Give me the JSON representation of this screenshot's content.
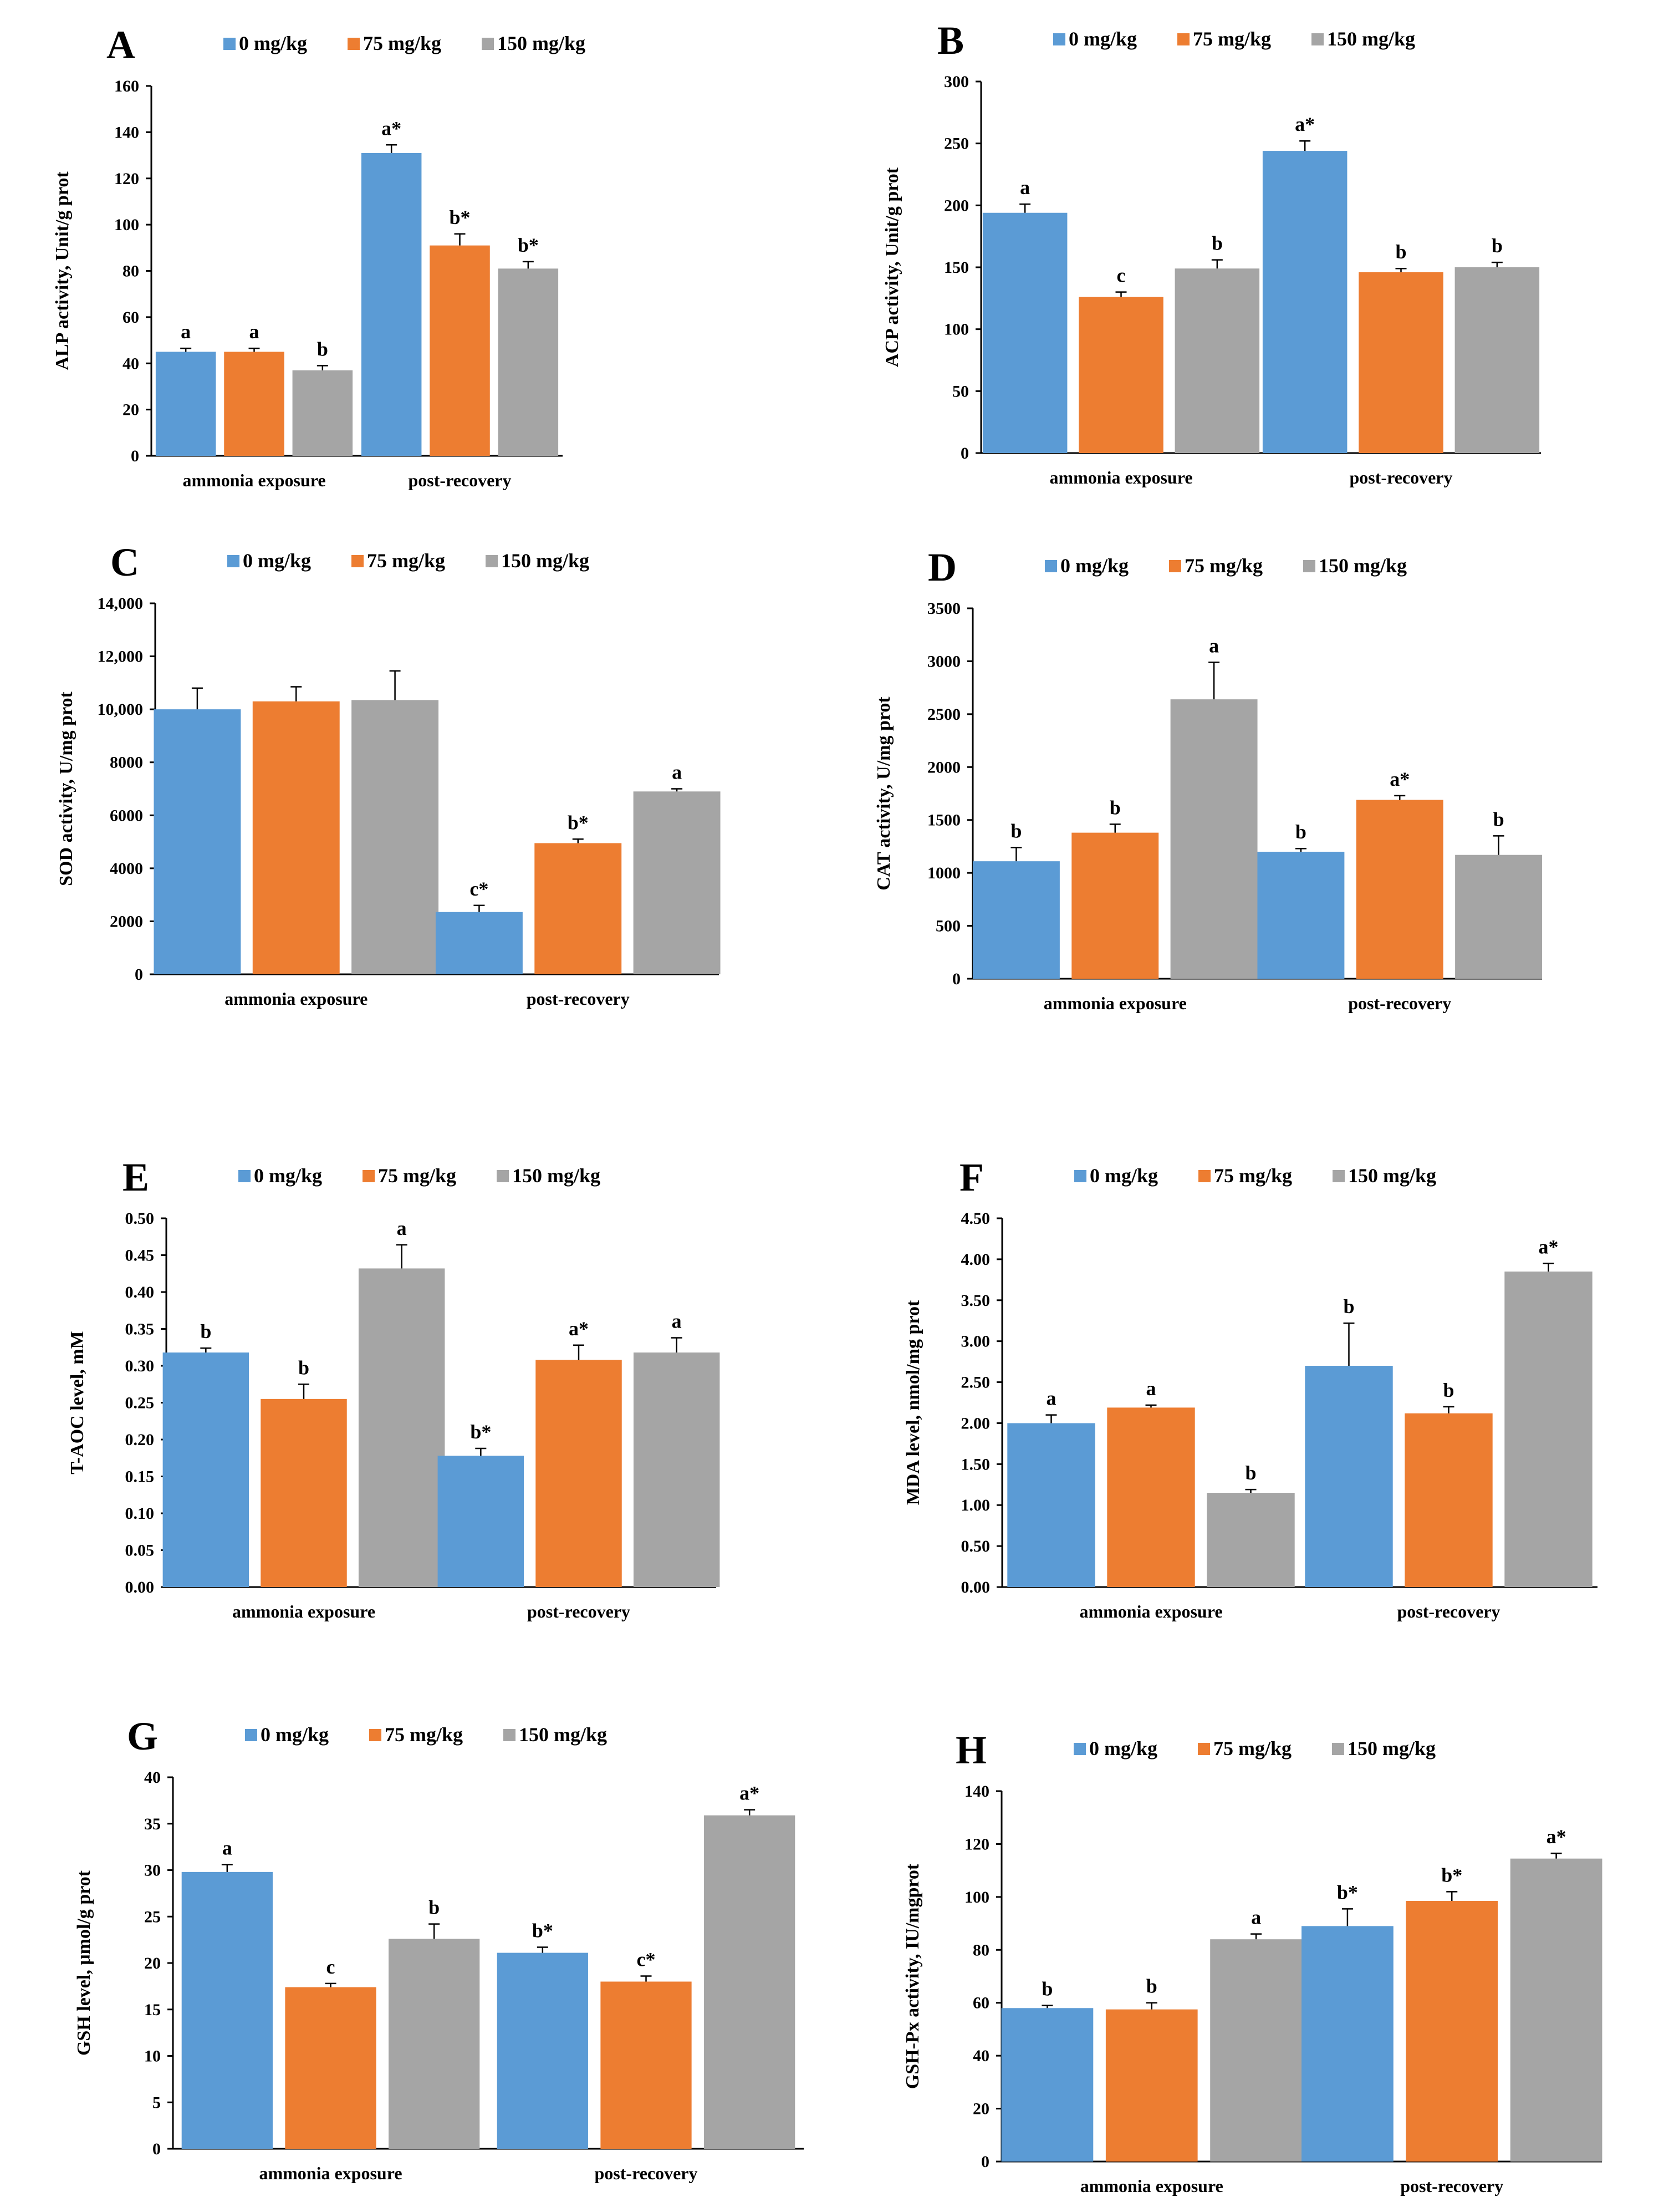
{
  "colors": {
    "s0": "#5B9BD5",
    "s1": "#ED7D31",
    "s2": "#A5A5A5"
  },
  "chart_data": [
    {
      "panel": "A",
      "type": "bar",
      "legend": [
        "0 mg/kg",
        "75 mg/kg",
        "150 mg/kg"
      ],
      "categories": [
        "ammonia exposure",
        "post-recovery"
      ],
      "ylabel": "ALP activity, Unit/g prot",
      "ylim": [
        0,
        160
      ],
      "yticks": [
        "0",
        "20",
        "40",
        "60",
        "80",
        "100",
        "120",
        "140",
        "160"
      ],
      "series": [
        {
          "name": "0 mg/kg",
          "values": [
            45,
            131
          ],
          "errors": [
            1.5,
            3.5
          ],
          "labels": [
            "a",
            "a*"
          ]
        },
        {
          "name": "75 mg/kg",
          "values": [
            45,
            91
          ],
          "errors": [
            1.5,
            5
          ],
          "labels": [
            "a",
            "b*"
          ]
        },
        {
          "name": "150 mg/kg",
          "values": [
            37,
            81
          ],
          "errors": [
            2,
            3
          ],
          "labels": [
            "b",
            "b*"
          ]
        }
      ]
    },
    {
      "panel": "B",
      "type": "bar",
      "legend": [
        "0 mg/kg",
        "75 mg/kg",
        "150 mg/kg"
      ],
      "categories": [
        "ammonia exposure",
        "post-recovery"
      ],
      "ylabel": "ACP activity, Unit/g prot",
      "ylim": [
        0,
        300
      ],
      "yticks": [
        "0",
        "50",
        "100",
        "150",
        "200",
        "250",
        "300"
      ],
      "series": [
        {
          "name": "0 mg/kg",
          "values": [
            194,
            244
          ],
          "errors": [
            7,
            8
          ],
          "labels": [
            "a",
            "a*"
          ]
        },
        {
          "name": "75 mg/kg",
          "values": [
            126,
            146
          ],
          "errors": [
            4,
            3
          ],
          "labels": [
            "c",
            "b"
          ]
        },
        {
          "name": "150 mg/kg",
          "values": [
            149,
            150
          ],
          "errors": [
            7,
            4
          ],
          "labels": [
            "b",
            "b"
          ]
        }
      ]
    },
    {
      "panel": "C",
      "type": "bar",
      "legend": [
        "0 mg/kg",
        "75 mg/kg",
        "150 mg/kg"
      ],
      "categories": [
        "ammonia exposure",
        "post-recovery"
      ],
      "ylabel": "SOD activity, U/mg prot",
      "ylim": [
        0,
        14000
      ],
      "yticks": [
        "0",
        "2000",
        "4000",
        "6000",
        "8000",
        "10,000",
        "12,000",
        "14,000"
      ],
      "series": [
        {
          "name": "0 mg/kg",
          "values": [
            10000,
            2350
          ],
          "errors": [
            800,
            250
          ],
          "labels": [
            "",
            "c*"
          ]
        },
        {
          "name": "75 mg/kg",
          "values": [
            10300,
            4950
          ],
          "errors": [
            550,
            150
          ],
          "labels": [
            "",
            "b*"
          ]
        },
        {
          "name": "150 mg/kg",
          "values": [
            10350,
            6900
          ],
          "errors": [
            1100,
            100
          ],
          "labels": [
            "",
            "a"
          ]
        }
      ]
    },
    {
      "panel": "D",
      "type": "bar",
      "legend": [
        "0 mg/kg",
        "75 mg/kg",
        "150 mg/kg"
      ],
      "categories": [
        "ammonia exposure",
        "post-recovery"
      ],
      "ylabel": "CAT activity, U/mg prot",
      "ylim": [
        0,
        3500
      ],
      "yticks": [
        "0",
        "500",
        "1000",
        "1500",
        "2000",
        "2500",
        "3000",
        "3500"
      ],
      "series": [
        {
          "name": "0 mg/kg",
          "values": [
            1110,
            1200
          ],
          "errors": [
            130,
            30
          ],
          "labels": [
            "b",
            "b"
          ]
        },
        {
          "name": "75 mg/kg",
          "values": [
            1380,
            1690
          ],
          "errors": [
            80,
            40
          ],
          "labels": [
            "b",
            "a*"
          ]
        },
        {
          "name": "150 mg/kg",
          "values": [
            2640,
            1170
          ],
          "errors": [
            350,
            180
          ],
          "labels": [
            "a",
            "b"
          ]
        }
      ]
    },
    {
      "panel": "E",
      "type": "bar",
      "legend": [
        "0 mg/kg",
        "75 mg/kg",
        "150 mg/kg"
      ],
      "categories": [
        "ammonia exposure",
        "post-recovery"
      ],
      "ylabel": "T-AOC level, mM",
      "ylim": [
        0,
        0.5
      ],
      "yticks": [
        "0.00",
        "0.05",
        "0.10",
        "0.15",
        "0.20",
        "0.25",
        "0.30",
        "0.35",
        "0.40",
        "0.45",
        "0.50"
      ],
      "series": [
        {
          "name": "0 mg/kg",
          "values": [
            0.318,
            0.178
          ],
          "errors": [
            0.006,
            0.01
          ],
          "labels": [
            "b",
            "b*"
          ]
        },
        {
          "name": "75 mg/kg",
          "values": [
            0.255,
            0.308
          ],
          "errors": [
            0.02,
            0.02
          ],
          "labels": [
            "b",
            "a*"
          ]
        },
        {
          "name": "150 mg/kg",
          "values": [
            0.432,
            0.318
          ],
          "errors": [
            0.032,
            0.02
          ],
          "labels": [
            "a",
            "a"
          ]
        }
      ]
    },
    {
      "panel": "F",
      "type": "bar",
      "legend": [
        "0 mg/kg",
        "75 mg/kg",
        "150 mg/kg"
      ],
      "categories": [
        "ammonia exposure",
        "post-recovery"
      ],
      "ylabel": "MDA level, nmol/mg prot",
      "ylim": [
        0,
        4.5
      ],
      "yticks": [
        "0.00",
        "0.50",
        "1.00",
        "1.50",
        "2.00",
        "2.50",
        "3.00",
        "3.50",
        "4.00",
        "4.50"
      ],
      "series": [
        {
          "name": "0 mg/kg",
          "values": [
            2.0,
            2.7
          ],
          "errors": [
            0.1,
            0.52
          ],
          "labels": [
            "a",
            "b"
          ]
        },
        {
          "name": "75 mg/kg",
          "values": [
            2.19,
            2.12
          ],
          "errors": [
            0.03,
            0.08
          ],
          "labels": [
            "a",
            "b"
          ]
        },
        {
          "name": "150 mg/kg",
          "values": [
            1.15,
            3.85
          ],
          "errors": [
            0.04,
            0.1
          ],
          "labels": [
            "b",
            "a*"
          ]
        }
      ]
    },
    {
      "panel": "G",
      "type": "bar",
      "legend": [
        "0 mg/kg",
        "75 mg/kg",
        "150 mg/kg"
      ],
      "categories": [
        "ammonia exposure",
        "post-recovery"
      ],
      "ylabel": "GSH level, μmol/g prot",
      "ylim": [
        0,
        40
      ],
      "yticks": [
        "0",
        "5",
        "10",
        "15",
        "20",
        "25",
        "30",
        "35",
        "40"
      ],
      "series": [
        {
          "name": "0 mg/kg",
          "values": [
            29.8,
            21.1
          ],
          "errors": [
            0.8,
            0.6
          ],
          "labels": [
            "a",
            "b*"
          ]
        },
        {
          "name": "75 mg/kg",
          "values": [
            17.4,
            18.0
          ],
          "errors": [
            0.4,
            0.6
          ],
          "labels": [
            "c",
            "c*"
          ]
        },
        {
          "name": "150 mg/kg",
          "values": [
            22.6,
            35.9
          ],
          "errors": [
            1.6,
            0.6
          ],
          "labels": [
            "b",
            "a*"
          ]
        }
      ]
    },
    {
      "panel": "H",
      "type": "bar",
      "legend": [
        "0 mg/kg",
        "75 mg/kg",
        "150 mg/kg"
      ],
      "categories": [
        "ammonia exposure",
        "post-recovery"
      ],
      "ylabel": "GSH-Px activity, IU/mgprot",
      "ylim": [
        0,
        140
      ],
      "yticks": [
        "0",
        "20",
        "40",
        "60",
        "80",
        "100",
        "120",
        "140"
      ],
      "series": [
        {
          "name": "0 mg/kg",
          "values": [
            58,
            89
          ],
          "errors": [
            1,
            6.5
          ],
          "labels": [
            "b",
            "b*"
          ]
        },
        {
          "name": "75 mg/kg",
          "values": [
            57.5,
            98.5
          ],
          "errors": [
            2.5,
            3.5
          ],
          "labels": [
            "b",
            "b*"
          ]
        },
        {
          "name": "150 mg/kg",
          "values": [
            84,
            114.5
          ],
          "errors": [
            2,
            2
          ],
          "labels": [
            "a",
            "a*"
          ]
        }
      ]
    }
  ]
}
